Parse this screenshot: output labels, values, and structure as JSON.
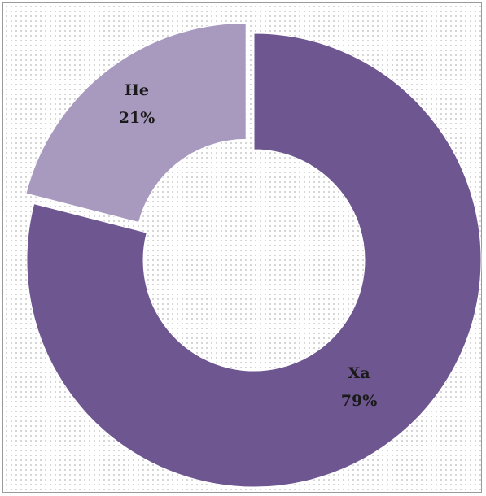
{
  "chart_data": {
    "type": "pie",
    "style": "donut",
    "categories": [
      "Ха",
      "Не"
    ],
    "values": [
      79,
      21
    ],
    "labels": [
      {
        "name": "Ха",
        "percent": "79%"
      },
      {
        "name": "Не",
        "percent": "21%"
      }
    ],
    "colors": [
      "#6e5691",
      "#a899bf"
    ],
    "exploded_slice": "Не",
    "legend": "none",
    "background": "dotted"
  }
}
